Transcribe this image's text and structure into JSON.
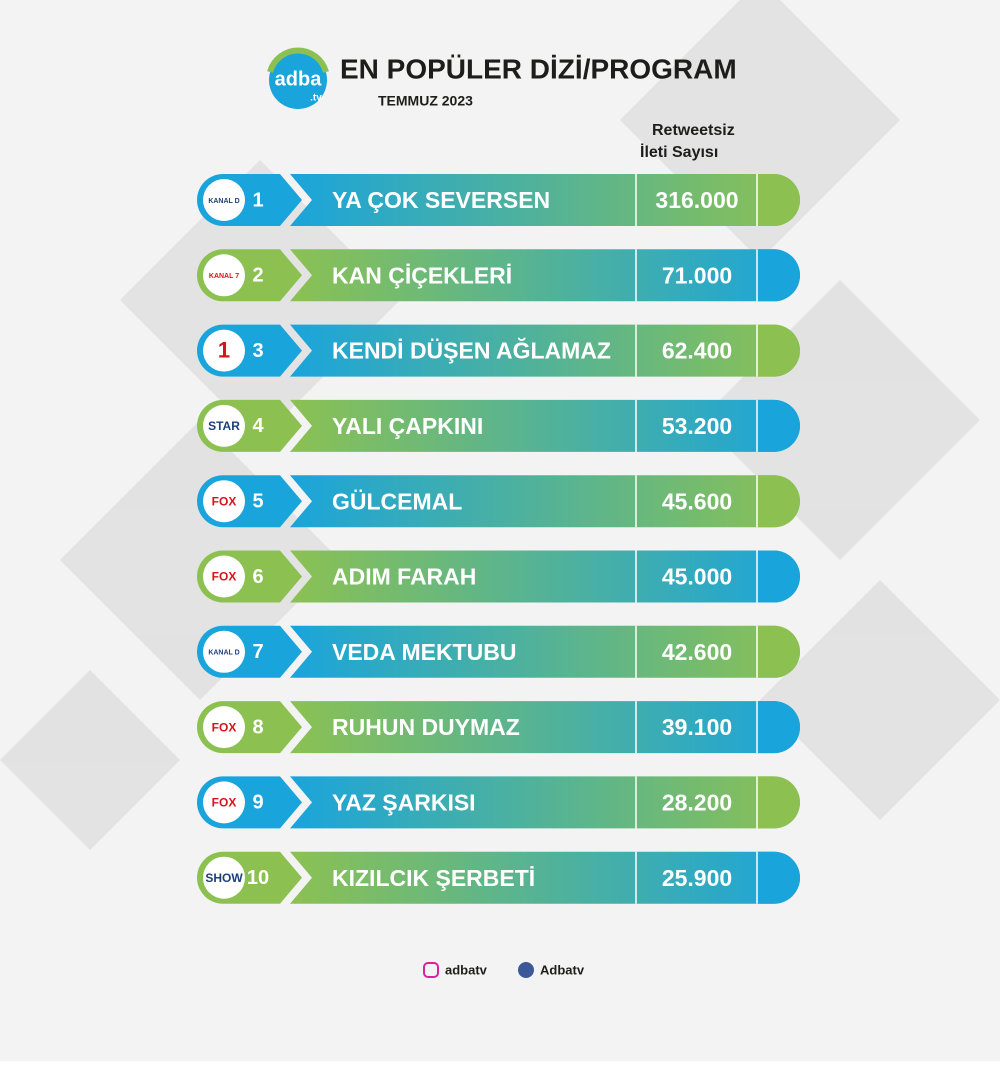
{
  "header": {
    "logo": "adba",
    "logo_suffix": ".tv",
    "title": "EN POPÜLER DİZİ/PROGRAM",
    "subtitle": "TEMMUZ 2023"
  },
  "column_header": [
    "Retweetsiz",
    "İleti Sayısı"
  ],
  "rows": [
    {
      "rank": "1",
      "channel": "KANAL D",
      "title": "YA ÇOK SEVERSEN",
      "value": "316.000"
    },
    {
      "rank": "2",
      "channel": "KANAL 7",
      "title": "KAN ÇİÇEKLERİ",
      "value": "71.000"
    },
    {
      "rank": "3",
      "channel": "1",
      "title": "KENDİ DÜŞEN AĞLAMAZ",
      "value": "62.400"
    },
    {
      "rank": "4",
      "channel": "STAR",
      "title": "YALI ÇAPKINI",
      "value": "53.200"
    },
    {
      "rank": "5",
      "channel": "FOX",
      "title": "GÜLCEMAL",
      "value": "45.600"
    },
    {
      "rank": "6",
      "channel": "FOX",
      "title": "ADIM FARAH",
      "value": "45.000"
    },
    {
      "rank": "7",
      "channel": "KANAL D",
      "title": "VEDA MEKTUBU",
      "value": "42.600"
    },
    {
      "rank": "8",
      "channel": "FOX",
      "title": "RUHUN DUYMAZ",
      "value": "39.100"
    },
    {
      "rank": "9",
      "channel": "FOX",
      "title": "YAZ ŞARKISI",
      "value": "28.200"
    },
    {
      "rank": "10",
      "channel": "SHOW",
      "title": "KIZILCIK ŞERBETİ",
      "value": "25.900"
    }
  ],
  "footer": {
    "instagram": "adbatv",
    "facebook": "Adbatv"
  }
}
